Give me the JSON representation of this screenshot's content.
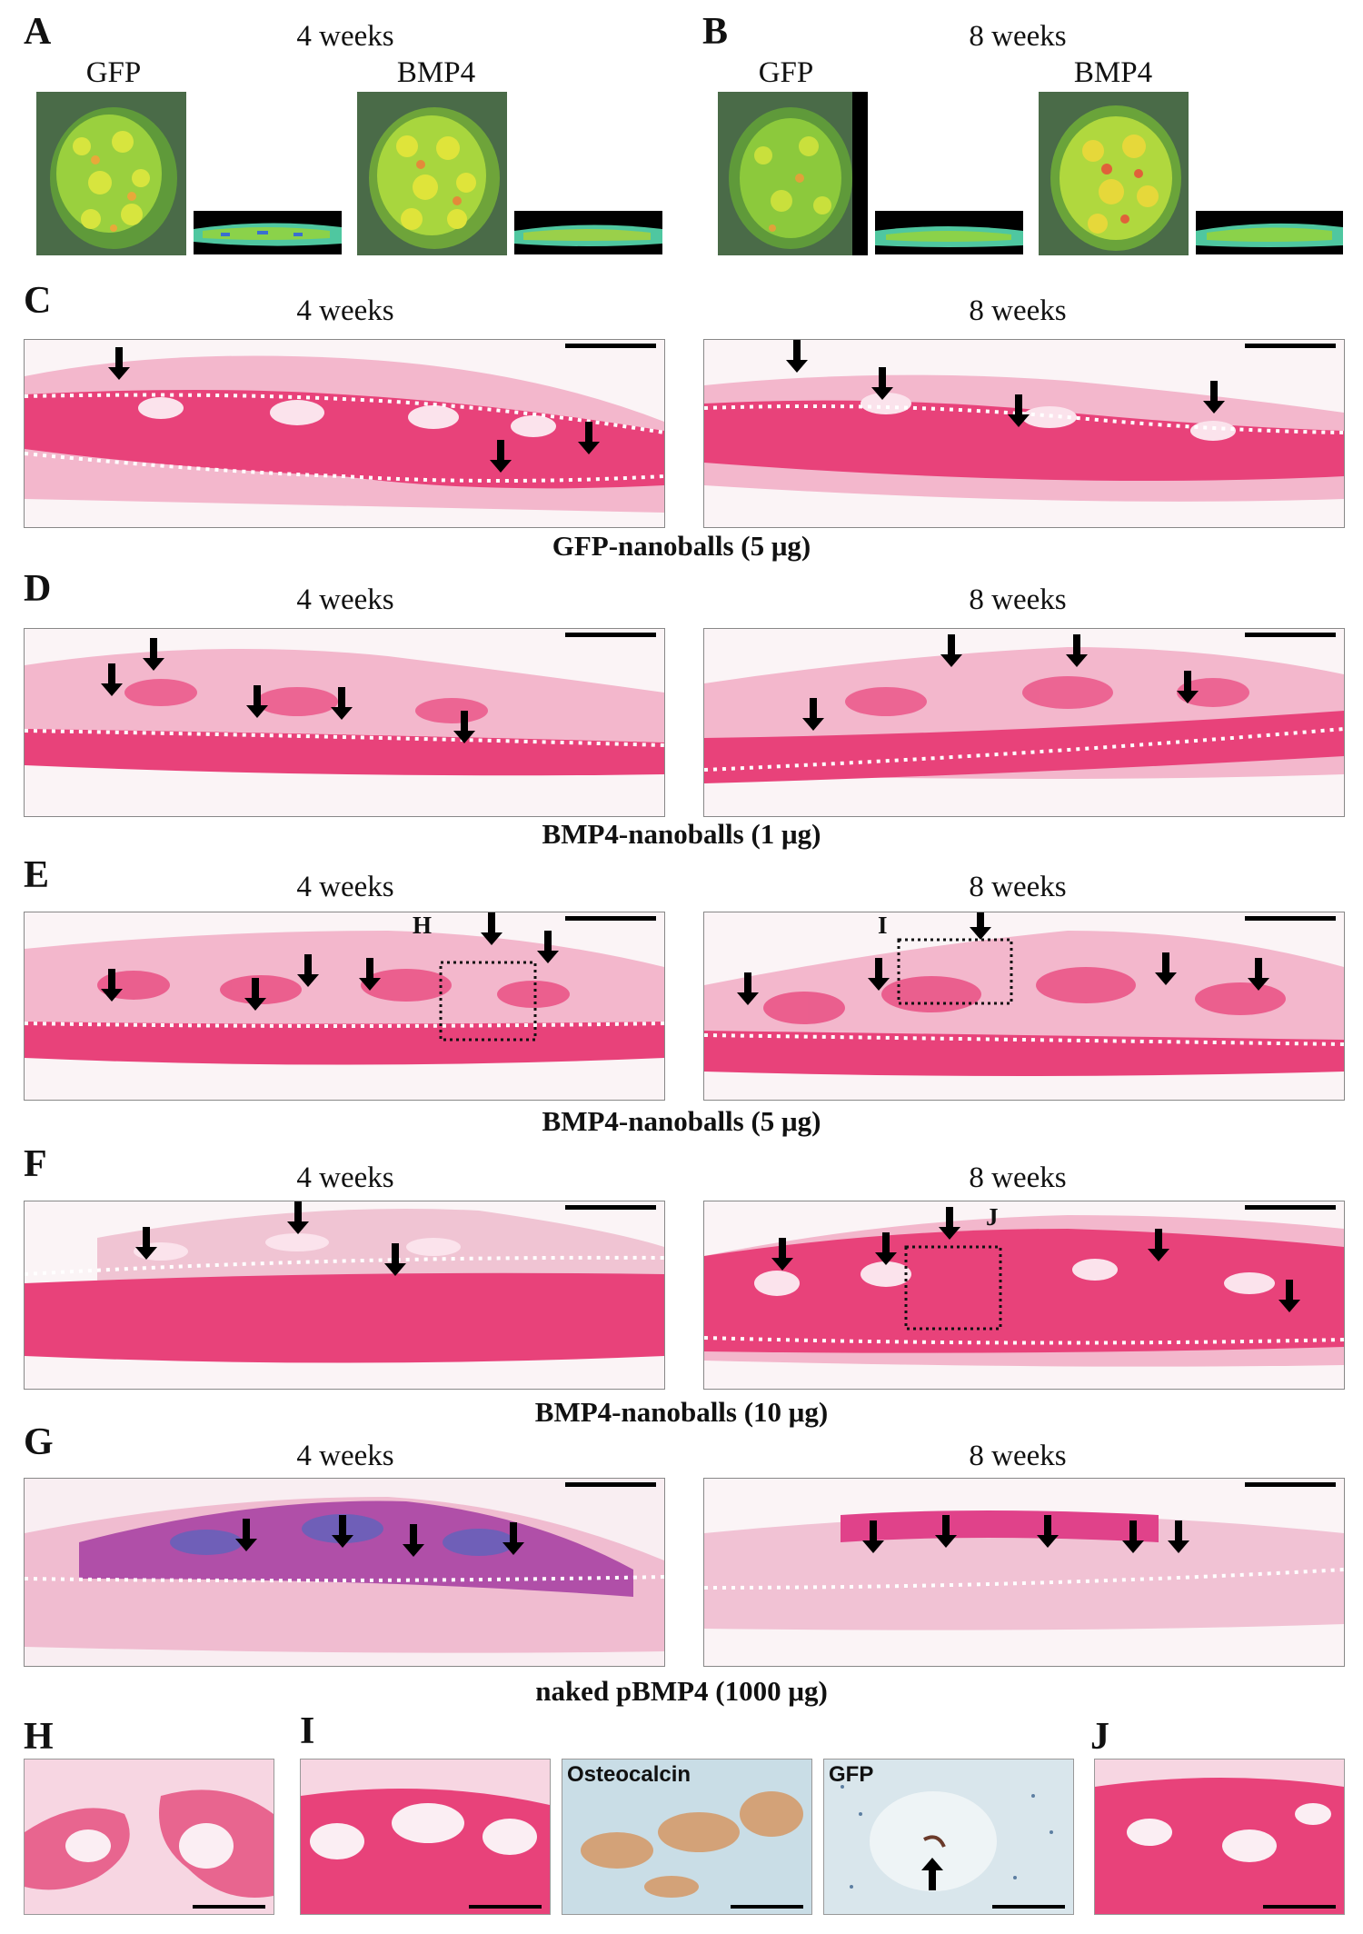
{
  "panels": {
    "A": {
      "letter": "A",
      "time": "4 weeks",
      "left_label": "GFP",
      "right_label": "BMP4"
    },
    "B": {
      "letter": "B",
      "time": "8 weeks",
      "left_label": "GFP",
      "right_label": "BMP4"
    },
    "C": {
      "letter": "C",
      "left_time": "4 weeks",
      "right_time": "8 weeks",
      "caption": "GFP-nanoballs (5 μg)"
    },
    "D": {
      "letter": "D",
      "left_time": "4 weeks",
      "right_time": "8 weeks",
      "caption": "BMP4-nanoballs (1 μg)"
    },
    "E": {
      "letter": "E",
      "left_time": "4 weeks",
      "right_time": "8 weeks",
      "caption": "BMP4-nanoballs (5 μg)",
      "box_left": "H",
      "box_right": "I"
    },
    "F": {
      "letter": "F",
      "left_time": "4 weeks",
      "right_time": "8 weeks",
      "caption": "BMP4-nanoballs (10 μg)",
      "box_right": "J"
    },
    "G": {
      "letter": "G",
      "left_time": "4 weeks",
      "right_time": "8 weeks",
      "caption": "naked pBMP4 (1000 μg)"
    },
    "H": {
      "letter": "H"
    },
    "I": {
      "letter": "I",
      "stain2": "Osteocalcin",
      "stain3": "GFP"
    },
    "J": {
      "letter": "J"
    }
  },
  "colors": {
    "he_pink": "#e8427a",
    "he_light": "#f7d6e2",
    "background_tissue": "#fbf4f6",
    "gfp_green": "#7fcf3a",
    "dashed_line": "#ffffff",
    "scale_bar": "#000000",
    "osteocalcin_brown": "#d88a4a",
    "ihc_blue": "#c9dde6"
  },
  "icons": [
    "down-arrow-icon",
    "scale-bar",
    "dotted-box"
  ]
}
